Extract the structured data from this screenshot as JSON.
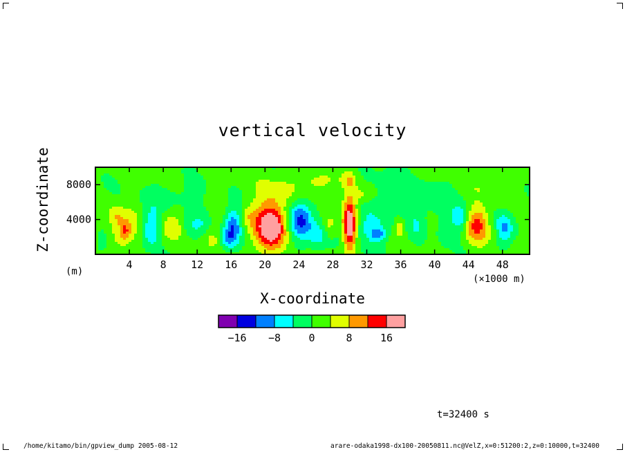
{
  "chart_data": {
    "type": "heatmap",
    "title": "vertical velocity",
    "xlabel": "X-coordinate",
    "ylabel": "Z-coordinate",
    "x_unit": "(×1000 m)",
    "y_unit": "(m)",
    "xlim": [
      0,
      51.2
    ],
    "ylim": [
      0,
      10000
    ],
    "x_ticks": [
      "4",
      "8",
      "12",
      "16",
      "20",
      "24",
      "28",
      "32",
      "36",
      "40",
      "44",
      "48"
    ],
    "y_ticks": [
      "4000",
      "8000"
    ],
    "colorbar": {
      "colors": [
        "#8000b0",
        "#0000e0",
        "#0080ff",
        "#00ffff",
        "#00ff60",
        "#40ff00",
        "#e0ff00",
        "#ff9900",
        "#ff0000",
        "#ffa0a0"
      ],
      "labels": [
        "−16",
        "−8",
        "0",
        "8",
        "16"
      ],
      "levels": [
        -20,
        -16,
        -12,
        -8,
        -4,
        0,
        4,
        8,
        12,
        16,
        20
      ]
    },
    "background_value": 1,
    "features": [
      {
        "x": 3.4,
        "z": 3000,
        "sx": 1.1,
        "sz": 1500,
        "w": 8
      },
      {
        "x": 3.5,
        "z": 2600,
        "sx": 0.4,
        "sz": 700,
        "w": 6
      },
      {
        "x": 6.6,
        "z": 3000,
        "sx": 0.7,
        "sz": 1500,
        "w": -10
      },
      {
        "x": 9.0,
        "z": 3200,
        "sx": 0.9,
        "sz": 1400,
        "w": 6
      },
      {
        "x": 11.2,
        "z": 3000,
        "sx": 0.8,
        "sz": 1200,
        "w": -4
      },
      {
        "x": 13.8,
        "z": 1800,
        "sx": 0.8,
        "sz": 900,
        "w": 5
      },
      {
        "x": 16.3,
        "z": 3200,
        "sx": 0.7,
        "sz": 1500,
        "w": -13
      },
      {
        "x": 15.5,
        "z": 1800,
        "sx": 0.6,
        "sz": 900,
        "w": -7
      },
      {
        "x": 20.6,
        "z": 3200,
        "sx": 1.5,
        "sz": 2000,
        "w": 17
      },
      {
        "x": 20.8,
        "z": 3200,
        "sx": 0.8,
        "sz": 1100,
        "w": 6
      },
      {
        "x": 24.2,
        "z": 3900,
        "sx": 1.0,
        "sz": 1600,
        "w": -15
      },
      {
        "x": 26.2,
        "z": 2000,
        "sx": 0.8,
        "sz": 1100,
        "w": -6
      },
      {
        "x": 27.6,
        "z": 3300,
        "sx": 0.5,
        "sz": 1000,
        "w": 5
      },
      {
        "x": 30.0,
        "z": 3400,
        "sx": 0.55,
        "sz": 2200,
        "w": 20
      },
      {
        "x": 32.4,
        "z": 3000,
        "sx": 1.6,
        "sz": 1500,
        "w": -6
      },
      {
        "x": 33.3,
        "z": 2300,
        "sx": 0.6,
        "sz": 500,
        "w": -8
      },
      {
        "x": 35.9,
        "z": 3000,
        "sx": 0.35,
        "sz": 600,
        "w": 8
      },
      {
        "x": 37.8,
        "z": 3300,
        "sx": 0.6,
        "sz": 1200,
        "w": -4
      },
      {
        "x": 43.1,
        "z": 4100,
        "sx": 0.6,
        "sz": 1000,
        "w": -8
      },
      {
        "x": 41.5,
        "z": 3000,
        "sx": 0.8,
        "sz": 1300,
        "w": -4
      },
      {
        "x": 45.0,
        "z": 3400,
        "sx": 1.0,
        "sz": 1500,
        "w": 12
      },
      {
        "x": 48.2,
        "z": 3000,
        "sx": 0.8,
        "sz": 1200,
        "w": -9
      },
      {
        "x": 47.0,
        "z": 2500,
        "sx": 0.4,
        "sz": 600,
        "w": 3
      },
      {
        "x": 0.8,
        "z": 1500,
        "sx": 0.5,
        "sz": 900,
        "w": -5
      },
      {
        "x": 2.3,
        "z": 4500,
        "sx": 0.6,
        "sz": 800,
        "w": 4
      },
      {
        "x": 9.0,
        "z": 6500,
        "sx": 2.5,
        "sz": 1200,
        "w": -3
      },
      {
        "x": 22.0,
        "z": 7500,
        "sx": 2.0,
        "sz": 1200,
        "w": 4
      },
      {
        "x": 26.5,
        "z": 8300,
        "sx": 1.2,
        "sz": 800,
        "w": 5
      },
      {
        "x": 30.0,
        "z": 8500,
        "sx": 0.6,
        "sz": 700,
        "w": 6
      },
      {
        "x": 31.5,
        "z": 6800,
        "sx": 0.8,
        "sz": 700,
        "w": 5
      },
      {
        "x": 35.0,
        "z": 7500,
        "sx": 2.5,
        "sz": 1500,
        "w": -3
      },
      {
        "x": 46.5,
        "z": 8000,
        "sx": 1.8,
        "sz": 1200,
        "w": 3
      },
      {
        "x": 40.0,
        "z": 6000,
        "sx": 2.5,
        "sz": 1500,
        "w": -3
      },
      {
        "x": 12.5,
        "z": 3500,
        "sx": 0.7,
        "sz": 1000,
        "w": -3
      },
      {
        "x": 18.0,
        "z": 4500,
        "sx": 0.7,
        "sz": 900,
        "w": 4
      }
    ]
  },
  "annotations": {
    "time": "t=32400 s",
    "footer_left": "/home/kitamo/bin/gpview_dump  2005-08-12",
    "footer_right": "arare-odaka1998-dx100-20050811.nc@VelZ,x=0:51200:2,z=0:10000,t=32400"
  }
}
